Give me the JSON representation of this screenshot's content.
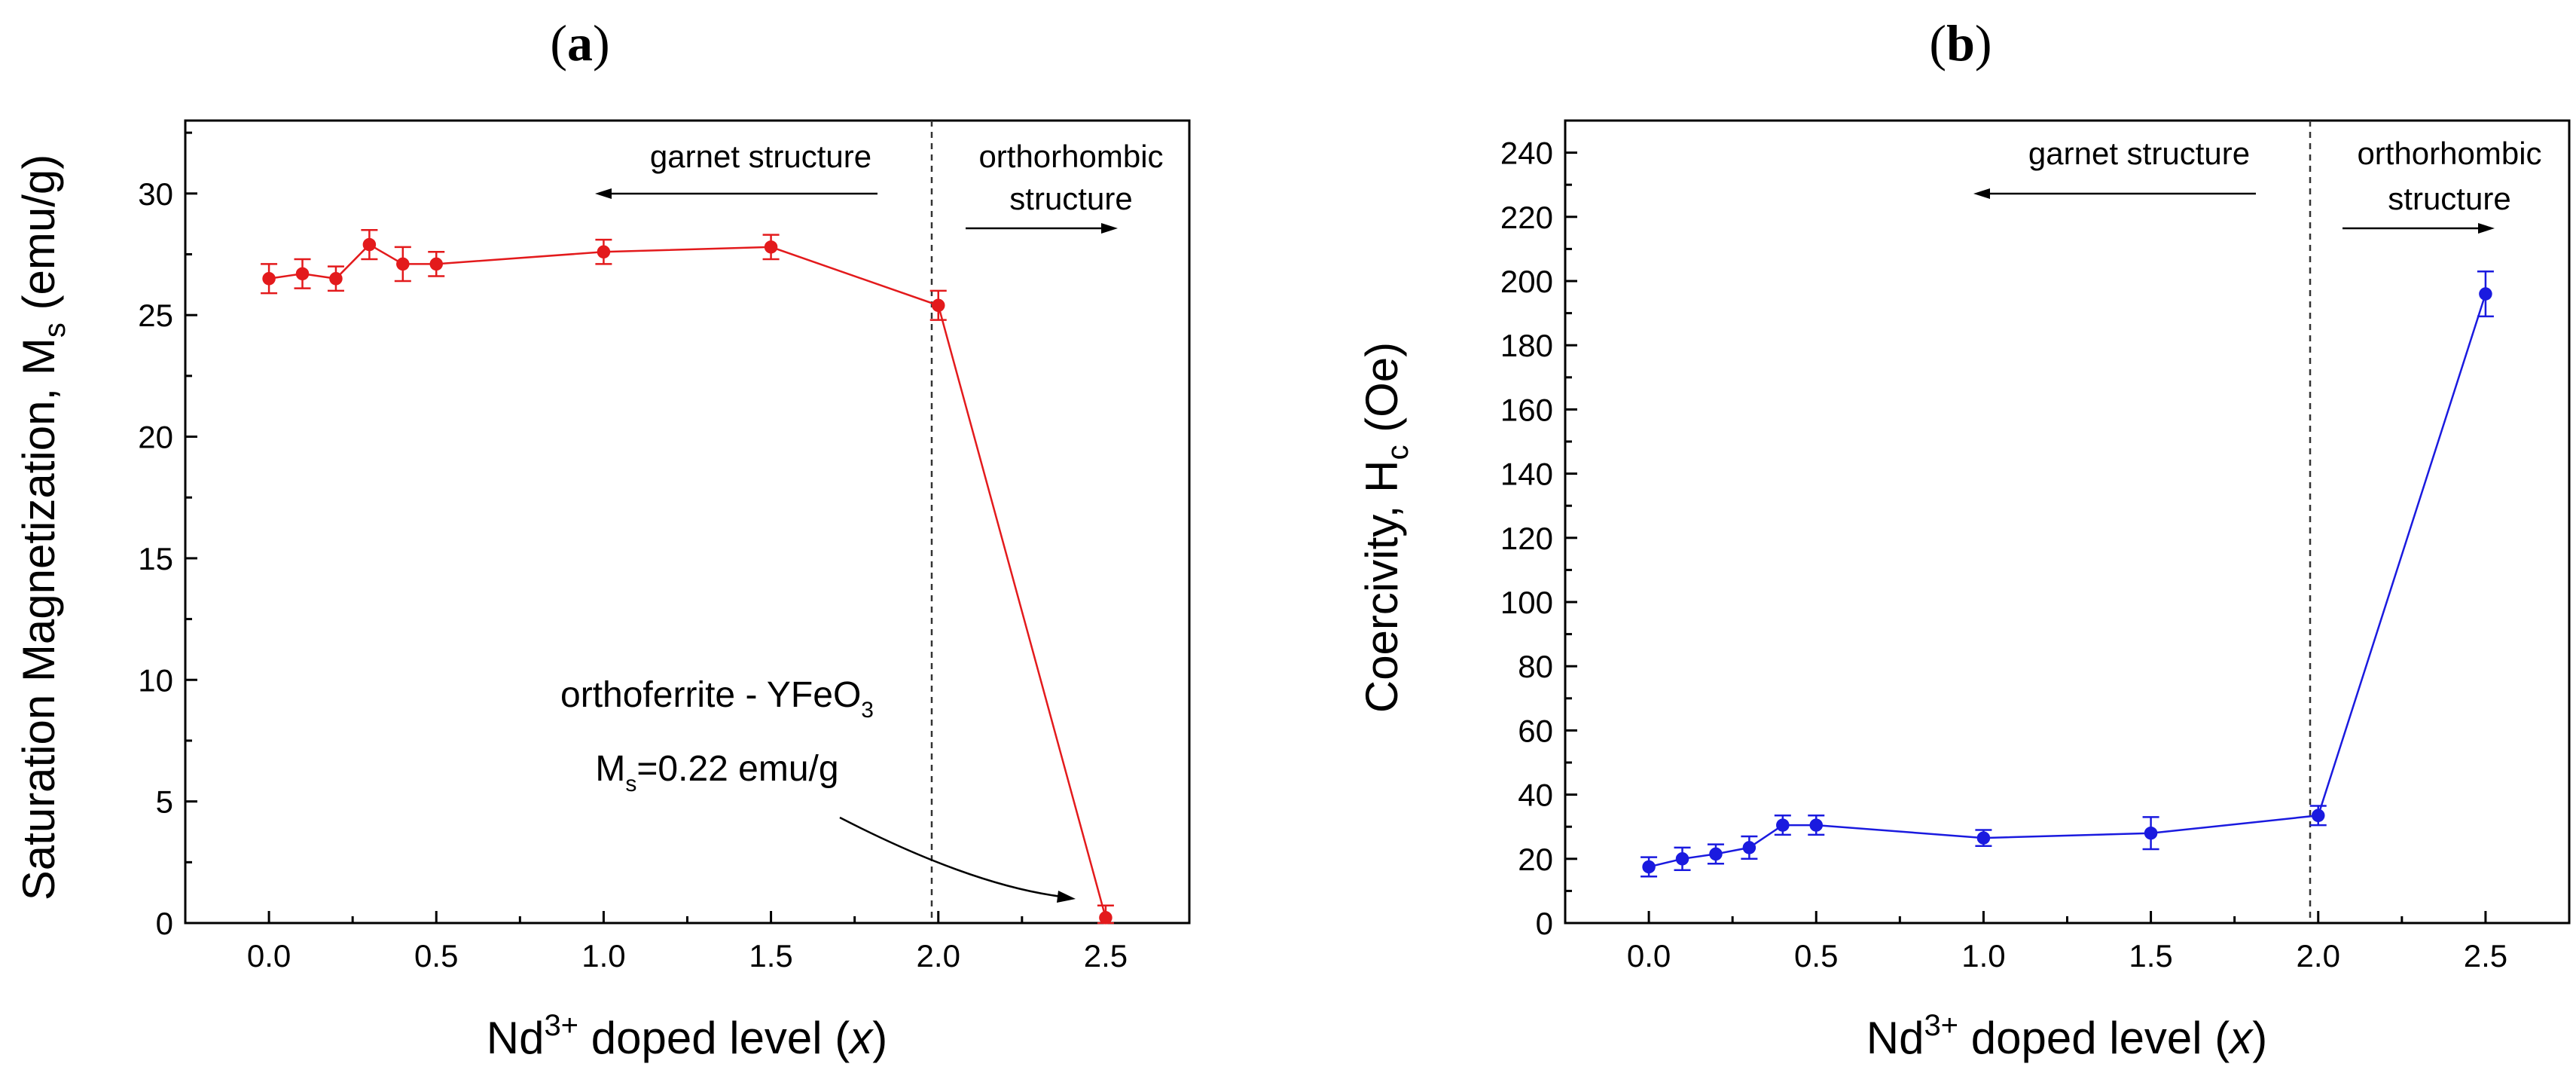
{
  "chart_data": [
    {
      "type": "line",
      "panel_label_letter": "a",
      "ylabel": "Saturation Magnetization, M",
      "ylabel_sub": "s",
      "ylabel_unit": " (emu/g)",
      "xlabel_pre": "Nd",
      "xlabel_sup": "3+",
      "xlabel_mid": " doped level (",
      "xlabel_var": "x",
      "xlabel_post": ")",
      "xlim": [
        -0.25,
        2.75
      ],
      "ylim": [
        0,
        33
      ],
      "xticks": [
        0.0,
        0.5,
        1.0,
        1.5,
        2.0,
        2.5
      ],
      "xtick_labels": [
        "0.0",
        "0.5",
        "1.0",
        "1.5",
        "2.0",
        "2.5"
      ],
      "yticks": [
        0,
        5,
        10,
        15,
        20,
        25,
        30
      ],
      "ytick_labels": [
        "0",
        "5",
        "10",
        "15",
        "20",
        "25",
        "30"
      ],
      "color": "#e31a1c",
      "x": [
        0.0,
        0.1,
        0.2,
        0.3,
        0.4,
        0.5,
        1.0,
        1.5,
        2.0,
        2.5
      ],
      "y": [
        26.5,
        26.7,
        26.5,
        27.9,
        27.1,
        27.1,
        27.6,
        27.8,
        25.4,
        0.22
      ],
      "err": [
        0.6,
        0.6,
        0.5,
        0.6,
        0.7,
        0.5,
        0.5,
        0.5,
        0.6,
        0.5
      ],
      "divider_x": 2.0,
      "annotations": {
        "garnet": "garnet structure",
        "ortho_1": "orthorhombic",
        "ortho_2": "structure",
        "orthoferrite_pre": "orthoferrite - YFeO",
        "orthoferrite_sub": "3",
        "ms_pre": "M",
        "ms_sub": "s",
        "ms_post": "=0.22 emu/g"
      }
    },
    {
      "type": "line",
      "panel_label_letter": "b",
      "ylabel": "Coercivity, H",
      "ylabel_sub": "c",
      "ylabel_unit": " (Oe)",
      "xlabel_pre": "Nd",
      "xlabel_sup": "3+",
      "xlabel_mid": " doped level (",
      "xlabel_var": "x",
      "xlabel_post": ")",
      "xlim": [
        -0.25,
        2.75
      ],
      "ylim": [
        0,
        250
      ],
      "xticks": [
        0.0,
        0.5,
        1.0,
        1.5,
        2.0,
        2.5
      ],
      "xtick_labels": [
        "0.0",
        "0.5",
        "1.0",
        "1.5",
        "2.0",
        "2.5"
      ],
      "yticks": [
        0,
        20,
        40,
        60,
        80,
        100,
        120,
        140,
        160,
        180,
        200,
        220,
        240
      ],
      "ytick_labels": [
        "0",
        "20",
        "40",
        "60",
        "80",
        "100",
        "120",
        "140",
        "160",
        "180",
        "200",
        "220",
        "240"
      ],
      "color": "#1a1adf",
      "x": [
        0.0,
        0.1,
        0.2,
        0.3,
        0.4,
        0.5,
        1.0,
        1.5,
        2.0,
        2.5
      ],
      "y": [
        17.5,
        20,
        21.5,
        23.5,
        30.5,
        30.5,
        26.5,
        28,
        33.5,
        196
      ],
      "err": [
        3,
        3.5,
        3,
        3.5,
        3,
        3,
        2.5,
        5,
        3,
        7
      ],
      "divider_x": 2.0,
      "annotations": {
        "garnet": "garnet structure",
        "ortho_1": "orthorhombic",
        "ortho_2": "structure"
      }
    }
  ]
}
